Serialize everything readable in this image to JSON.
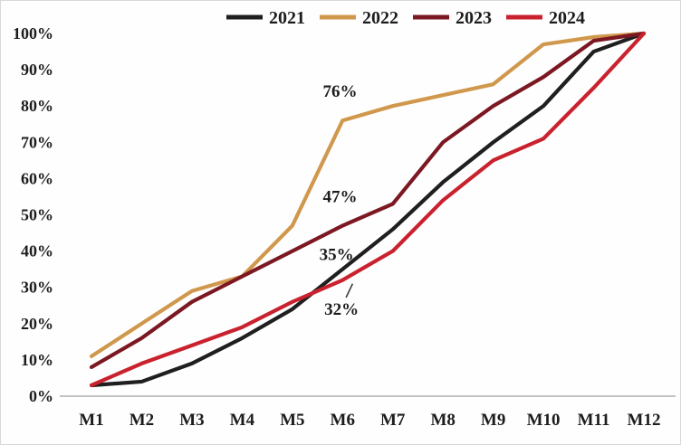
{
  "chart_data": {
    "type": "line",
    "title": "",
    "xlabel": "",
    "ylabel": "",
    "categories": [
      "M1",
      "M2",
      "M3",
      "M4",
      "M5",
      "M6",
      "M7",
      "M8",
      "M9",
      "M10",
      "M11",
      "M12"
    ],
    "series": [
      {
        "name": "2021",
        "color": "#1f1f1f",
        "values": [
          3,
          4,
          9,
          16,
          24,
          35,
          46,
          59,
          70,
          80,
          95,
          100
        ]
      },
      {
        "name": "2022",
        "color": "#d0984c",
        "values": [
          11,
          20,
          29,
          33,
          47,
          76,
          80,
          83,
          86,
          97,
          99,
          100
        ]
      },
      {
        "name": "2023",
        "color": "#7c1822",
        "values": [
          8,
          16,
          26,
          33,
          40,
          47,
          53,
          70,
          80,
          88,
          98,
          100
        ]
      },
      {
        "name": "2024",
        "color": "#c9222e",
        "values": [
          3,
          9,
          14,
          19,
          26,
          32,
          40,
          54,
          65,
          71,
          85,
          100
        ]
      }
    ],
    "ylim": [
      0,
      100
    ],
    "y_ticks": [
      "0%",
      "10%",
      "20%",
      "30%",
      "40%",
      "50%",
      "60%",
      "70%",
      "80%",
      "90%",
      "100%"
    ],
    "grid": false,
    "legend_position": "top-center",
    "annotations": [
      {
        "text": "76%",
        "x": 4.95,
        "y": 84
      },
      {
        "text": "47%",
        "x": 4.95,
        "y": 55
      },
      {
        "text": "35%",
        "x": 4.88,
        "y": 39
      },
      {
        "text": "32%",
        "x": 4.98,
        "y": 24,
        "leader": {
          "x1": 5.07,
          "y1": 27.2,
          "x2": 5.2,
          "y2": 31.0
        }
      }
    ],
    "axis_color": "#b0aeab"
  }
}
